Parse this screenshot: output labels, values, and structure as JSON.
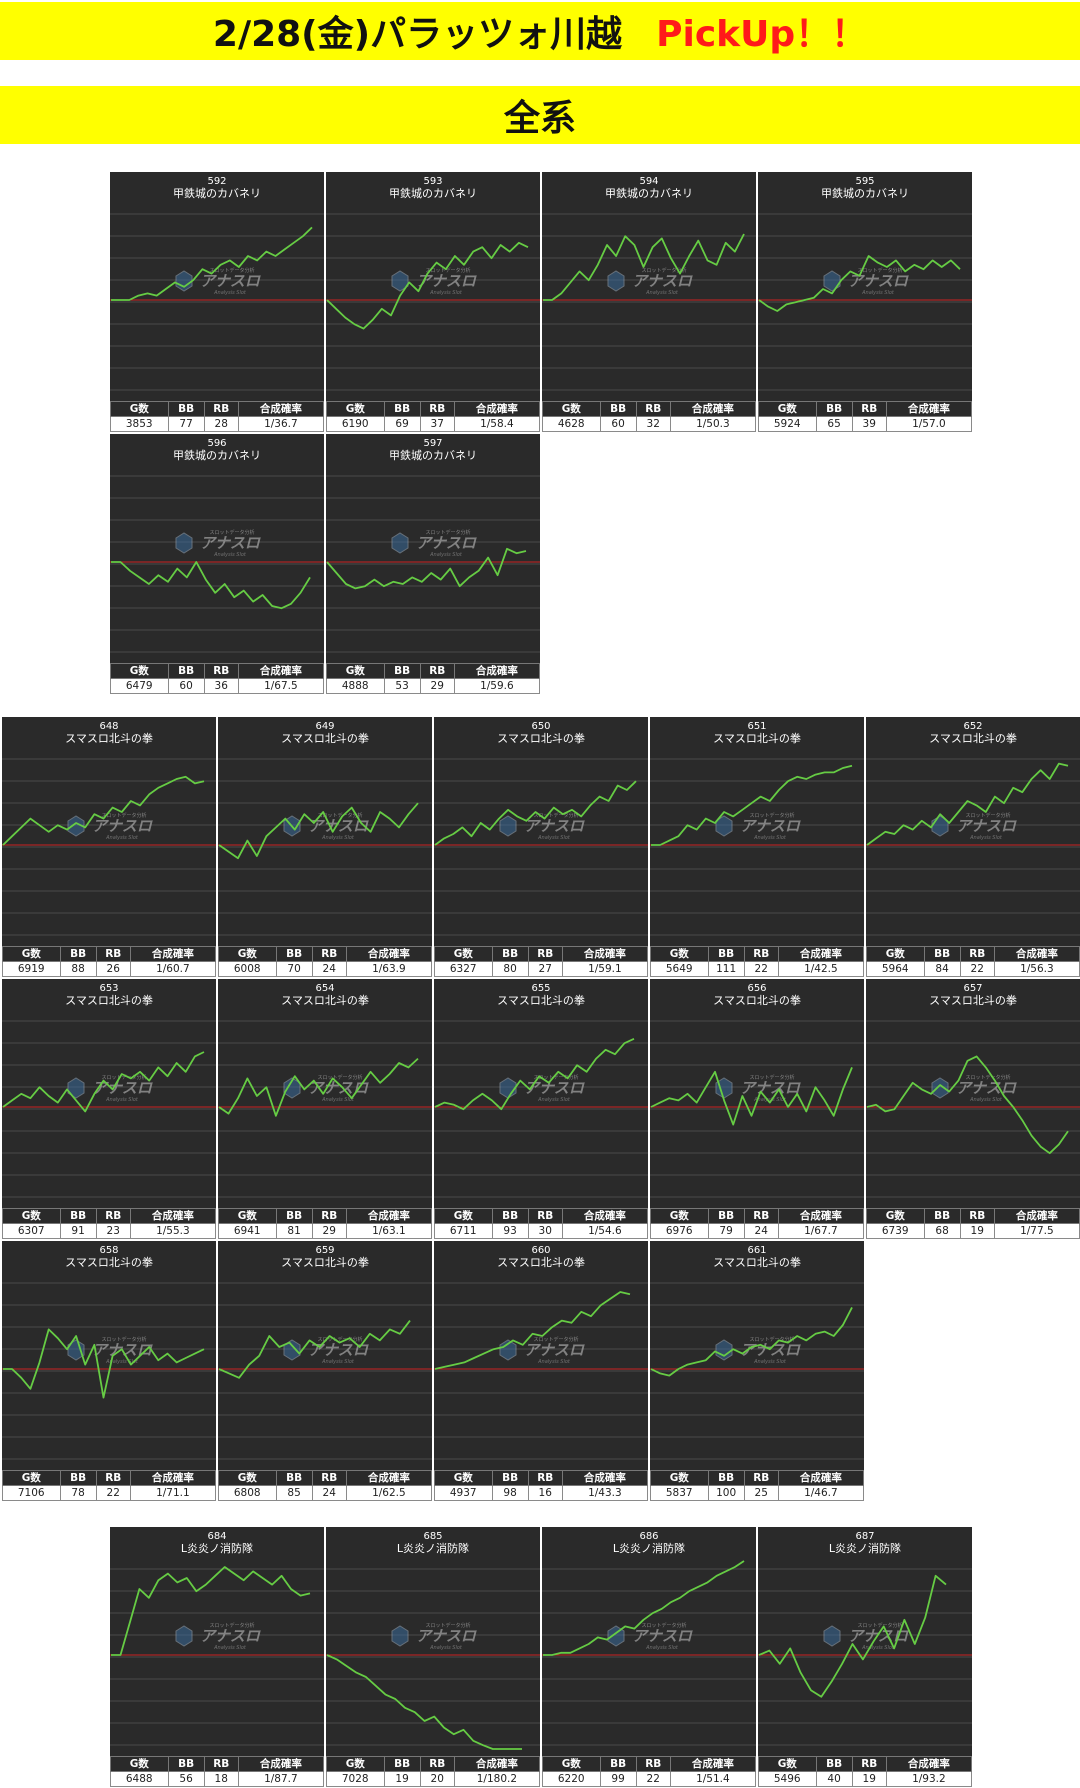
{
  "header": {
    "title": "2/28(金)パラッツォ川越",
    "pickup": "PickUp！！"
  },
  "section": {
    "title": "全系"
  },
  "colors": {
    "banner": "#ffff00",
    "panel_bg": "#2a2a2a",
    "line": "#66cc44",
    "baseline": "#cc2222",
    "pickup": "#ff1a1a"
  },
  "stat_headers": [
    "G数",
    "BB",
    "RB",
    "合成確率"
  ],
  "watermark": {
    "logo": "アナスロ",
    "sub": "Analysis Slot",
    "tagline": "スロットデータ分析"
  },
  "chart_data": [
    {
      "type": "line",
      "number": "592",
      "machine": "甲鉄城のカバネリ",
      "stats": [
        "3853",
        "77",
        "28",
        "1/36.7"
      ],
      "y": [
        0,
        0,
        0,
        0.2,
        0.3,
        0.2,
        0.5,
        0.8,
        0.6,
        0.9,
        1.4,
        1.2,
        1.6,
        1.8,
        1.5,
        2.0,
        1.8,
        2.2,
        2.0,
        2.3,
        2.6,
        2.9,
        3.3
      ]
    },
    {
      "type": "line",
      "number": "593",
      "machine": "甲鉄城のカバネリ",
      "stats": [
        "6190",
        "69",
        "37",
        "1/58.4"
      ],
      "y": [
        0,
        -0.4,
        -0.8,
        -1.1,
        -1.3,
        -0.9,
        -0.4,
        -0.7,
        0.2,
        0.8,
        0.4,
        1.2,
        1.7,
        1.4,
        2.0,
        1.6,
        2.2,
        2.4,
        1.9,
        2.5,
        2.2,
        2.6,
        2.4
      ]
    },
    {
      "type": "line",
      "number": "594",
      "machine": "甲鉄城のカバネリ",
      "stats": [
        "4628",
        "60",
        "32",
        "1/50.3"
      ],
      "y": [
        0,
        0,
        0.3,
        0.8,
        1.3,
        0.9,
        1.6,
        2.5,
        2.0,
        2.9,
        2.5,
        1.5,
        2.4,
        2.8,
        1.9,
        1.2,
        2.0,
        2.7,
        1.8,
        1.6,
        2.6,
        2.2,
        3.0
      ]
    },
    {
      "type": "line",
      "number": "595",
      "machine": "甲鉄城のカバネリ",
      "stats": [
        "5924",
        "65",
        "39",
        "1/57.0"
      ],
      "y": [
        0,
        -0.3,
        -0.5,
        -0.2,
        -0.1,
        0,
        0.1,
        0.5,
        0.3,
        0.9,
        1.3,
        1.1,
        2.0,
        1.7,
        1.5,
        1.8,
        1.3,
        1.6,
        1.4,
        1.8,
        1.5,
        1.8,
        1.4
      ]
    },
    {
      "type": "line",
      "number": "596",
      "machine": "甲鉄城のカバネリ",
      "stats": [
        "6479",
        "60",
        "36",
        "1/67.5"
      ],
      "y": [
        0,
        0,
        -0.4,
        -0.7,
        -1.0,
        -0.6,
        -0.9,
        -0.3,
        -0.7,
        0,
        -0.8,
        -1.4,
        -1.0,
        -1.6,
        -1.3,
        -1.8,
        -1.5,
        -2.0,
        -2.1,
        -1.9,
        -1.4,
        -0.7
      ]
    },
    {
      "type": "line",
      "number": "597",
      "machine": "甲鉄城のカバネリ",
      "stats": [
        "4888",
        "53",
        "29",
        "1/59.6"
      ],
      "y": [
        0,
        -0.5,
        -1.0,
        -1.2,
        -1.1,
        -0.8,
        -1.1,
        -0.9,
        -1.0,
        -0.7,
        -0.9,
        -0.5,
        -0.8,
        -0.3,
        -1.1,
        -0.7,
        -0.4,
        0.2,
        -0.6,
        0.6,
        0.4,
        0.5
      ]
    },
    {
      "type": "line",
      "number": "648",
      "machine": "スマスロ北斗の拳",
      "stats": [
        "6919",
        "88",
        "26",
        "1/60.7"
      ],
      "y": [
        0,
        0.4,
        0.8,
        1.2,
        0.9,
        0.6,
        0.9,
        0.7,
        1.0,
        0.8,
        1.4,
        1.2,
        1.7,
        1.5,
        2.0,
        1.8,
        2.3,
        2.6,
        2.8,
        3.0,
        3.1,
        2.8,
        2.9
      ]
    },
    {
      "type": "line",
      "number": "649",
      "machine": "スマスロ北斗の拳",
      "stats": [
        "6008",
        "70",
        "24",
        "1/63.9"
      ],
      "y": [
        0,
        -0.3,
        -0.6,
        0.2,
        -0.5,
        0.4,
        0.8,
        1.2,
        0.7,
        1.4,
        1.0,
        1.5,
        0.6,
        1.3,
        1.7,
        1.0,
        0.6,
        1.5,
        1.2,
        0.8,
        1.4,
        1.9
      ]
    },
    {
      "type": "line",
      "number": "650",
      "machine": "スマスロ北斗の拳",
      "stats": [
        "6327",
        "80",
        "27",
        "1/59.1"
      ],
      "y": [
        0,
        0.3,
        0.5,
        0.8,
        0.4,
        1.0,
        0.7,
        1.2,
        1.6,
        1.3,
        1.1,
        1.5,
        1.2,
        1.7,
        1.4,
        1.6,
        1.3,
        1.8,
        2.2,
        2.0,
        2.7,
        2.5,
        2.9
      ]
    },
    {
      "type": "line",
      "number": "651",
      "machine": "スマスロ北斗の拳",
      "stats": [
        "5649",
        "111",
        "22",
        "1/42.5"
      ],
      "y": [
        0,
        0,
        0.2,
        0.4,
        0.9,
        0.7,
        1.2,
        1.0,
        1.5,
        1.3,
        1.6,
        1.9,
        2.2,
        2.0,
        2.5,
        2.9,
        3.1,
        3.0,
        3.2,
        3.3,
        3.3,
        3.5,
        3.6
      ]
    },
    {
      "type": "line",
      "number": "652",
      "machine": "スマスロ北斗の拳",
      "stats": [
        "5964",
        "84",
        "22",
        "1/56.3"
      ],
      "y": [
        0,
        0.3,
        0.6,
        0.5,
        0.9,
        0.7,
        1.1,
        0.8,
        1.4,
        1.0,
        1.5,
        2.0,
        1.8,
        1.5,
        2.2,
        1.9,
        2.6,
        2.4,
        3.0,
        3.4,
        3.0,
        3.7,
        3.6
      ]
    },
    {
      "type": "line",
      "number": "653",
      "machine": "スマスロ北斗の拳",
      "stats": [
        "6307",
        "91",
        "23",
        "1/55.3"
      ],
      "y": [
        0,
        0.3,
        0.6,
        0.4,
        0.9,
        0.5,
        0.2,
        0.8,
        0.3,
        -0.2,
        0.6,
        1.2,
        0.8,
        1.5,
        1.3,
        1.6,
        1.2,
        1.8,
        1.4,
        2.0,
        1.6,
        2.3,
        2.5
      ]
    },
    {
      "type": "line",
      "number": "654",
      "machine": "スマスロ北斗の拳",
      "stats": [
        "6941",
        "81",
        "29",
        "1/63.1"
      ],
      "y": [
        0,
        -0.3,
        0.4,
        1.3,
        0.5,
        0.9,
        -0.4,
        0.7,
        1.4,
        0.8,
        1.2,
        0.6,
        1.3,
        0.9,
        0.4,
        1.0,
        1.6,
        1.1,
        1.5,
        2.0,
        1.8,
        2.2
      ]
    },
    {
      "type": "line",
      "number": "655",
      "machine": "スマスロ北斗の拳",
      "stats": [
        "6711",
        "93",
        "30",
        "1/54.6"
      ],
      "y": [
        0,
        0.2,
        0.1,
        -0.1,
        0.3,
        0.6,
        0.3,
        -0.1,
        0.6,
        1.2,
        0.8,
        1.4,
        1.1,
        1.6,
        1.3,
        1.9,
        1.6,
        2.2,
        2.6,
        2.4,
        2.9,
        3.1
      ]
    },
    {
      "type": "line",
      "number": "656",
      "machine": "スマスロ北斗の拳",
      "stats": [
        "6976",
        "79",
        "24",
        "1/67.7"
      ],
      "y": [
        0,
        0.2,
        0.4,
        0.3,
        0.6,
        0.2,
        0.9,
        1.6,
        0.3,
        -0.8,
        0.5,
        -0.4,
        0.7,
        0.2,
        0.8,
        0,
        0.6,
        -0.2,
        0.9,
        0.3,
        -0.4,
        0.8,
        1.8
      ]
    },
    {
      "type": "line",
      "number": "657",
      "machine": "スマスロ北斗の拳",
      "stats": [
        "6739",
        "68",
        "19",
        "1/77.5"
      ],
      "y": [
        0,
        0.1,
        -0.2,
        -0.1,
        0.5,
        1.1,
        0.8,
        0.6,
        1.0,
        0.7,
        1.2,
        2.1,
        2.3,
        1.8,
        1.2,
        0.5,
        0,
        -0.6,
        -1.3,
        -1.8,
        -2.1,
        -1.7,
        -1.1
      ]
    },
    {
      "type": "line",
      "number": "658",
      "machine": "スマスロ北斗の拳",
      "stats": [
        "7106",
        "78",
        "22",
        "1/71.1"
      ],
      "y": [
        0,
        0,
        -0.4,
        -0.9,
        0.3,
        1.8,
        1.4,
        0.9,
        1.5,
        0.2,
        1.1,
        -1.3,
        0.6,
        0.9,
        0.2,
        0.6,
        1.0,
        0.4,
        0.7,
        0.3,
        0.5,
        0.7,
        0.9
      ]
    },
    {
      "type": "line",
      "number": "659",
      "machine": "スマスロ北斗の拳",
      "stats": [
        "6808",
        "85",
        "24",
        "1/62.5"
      ],
      "y": [
        0,
        -0.2,
        -0.4,
        0.2,
        0.6,
        1.5,
        1.0,
        1.2,
        0.7,
        1.3,
        1.0,
        1.5,
        1.2,
        1.4,
        1.0,
        1.6,
        1.3,
        1.8,
        1.6,
        2.2
      ]
    },
    {
      "type": "line",
      "number": "660",
      "machine": "スマスロ北斗の拳",
      "stats": [
        "4937",
        "98",
        "16",
        "1/43.3"
      ],
      "y": [
        0,
        0.1,
        0.2,
        0.3,
        0.5,
        0.7,
        0.9,
        1.0,
        1.3,
        1.1,
        1.6,
        1.5,
        1.9,
        2.2,
        2.1,
        2.6,
        2.4,
        2.9,
        3.2,
        3.5,
        3.4
      ]
    },
    {
      "type": "line",
      "number": "661",
      "machine": "スマスロ北斗の拳",
      "stats": [
        "5837",
        "100",
        "25",
        "1/46.7"
      ],
      "y": [
        0,
        -0.2,
        -0.3,
        0,
        0.2,
        0.3,
        0.4,
        0.8,
        0.6,
        0.9,
        0.7,
        1.0,
        1.1,
        0.9,
        1.3,
        1.2,
        1.5,
        1.3,
        1.6,
        1.7,
        1.5,
        2.0,
        2.8
      ]
    },
    {
      "type": "line",
      "number": "684",
      "machine": "L炎炎ノ消防隊",
      "stats": [
        "6488",
        "56",
        "18",
        "1/87.7"
      ],
      "y": [
        0,
        0,
        1.5,
        3.0,
        2.6,
        3.4,
        3.7,
        3.3,
        3.5,
        2.9,
        3.2,
        3.6,
        4.0,
        3.7,
        3.4,
        3.8,
        3.5,
        3.2,
        3.6,
        3.0,
        2.7,
        2.8
      ]
    },
    {
      "type": "line",
      "number": "685",
      "machine": "L炎炎ノ消防隊",
      "stats": [
        "7028",
        "19",
        "20",
        "1/180.2"
      ],
      "y": [
        0,
        -0.2,
        -0.5,
        -0.8,
        -1.0,
        -1.4,
        -1.8,
        -2.0,
        -2.4,
        -2.6,
        -3.0,
        -2.8,
        -3.3,
        -3.6,
        -3.4,
        -3.9,
        -4.1,
        -4.4,
        -4.3,
        -4.6,
        -4.8
      ]
    },
    {
      "type": "line",
      "number": "686",
      "machine": "L炎炎ノ消防隊",
      "stats": [
        "6220",
        "99",
        "22",
        "1/51.4"
      ],
      "y": [
        0,
        0,
        0.1,
        0.1,
        0.3,
        0.5,
        0.8,
        0.7,
        1.0,
        1.3,
        1.2,
        1.6,
        1.9,
        2.1,
        2.4,
        2.6,
        2.9,
        3.1,
        3.3,
        3.6,
        3.8,
        4.0,
        4.3
      ]
    },
    {
      "type": "line",
      "number": "687",
      "machine": "L炎炎ノ消防隊",
      "stats": [
        "5496",
        "40",
        "19",
        "1/93.2"
      ],
      "y": [
        0,
        0.2,
        -0.4,
        0.3,
        -0.8,
        -1.6,
        -1.9,
        -1.2,
        -0.4,
        0.5,
        -0.2,
        0.6,
        1.3,
        0.3,
        1.6,
        0.5,
        1.7,
        3.6,
        3.2
      ]
    }
  ]
}
